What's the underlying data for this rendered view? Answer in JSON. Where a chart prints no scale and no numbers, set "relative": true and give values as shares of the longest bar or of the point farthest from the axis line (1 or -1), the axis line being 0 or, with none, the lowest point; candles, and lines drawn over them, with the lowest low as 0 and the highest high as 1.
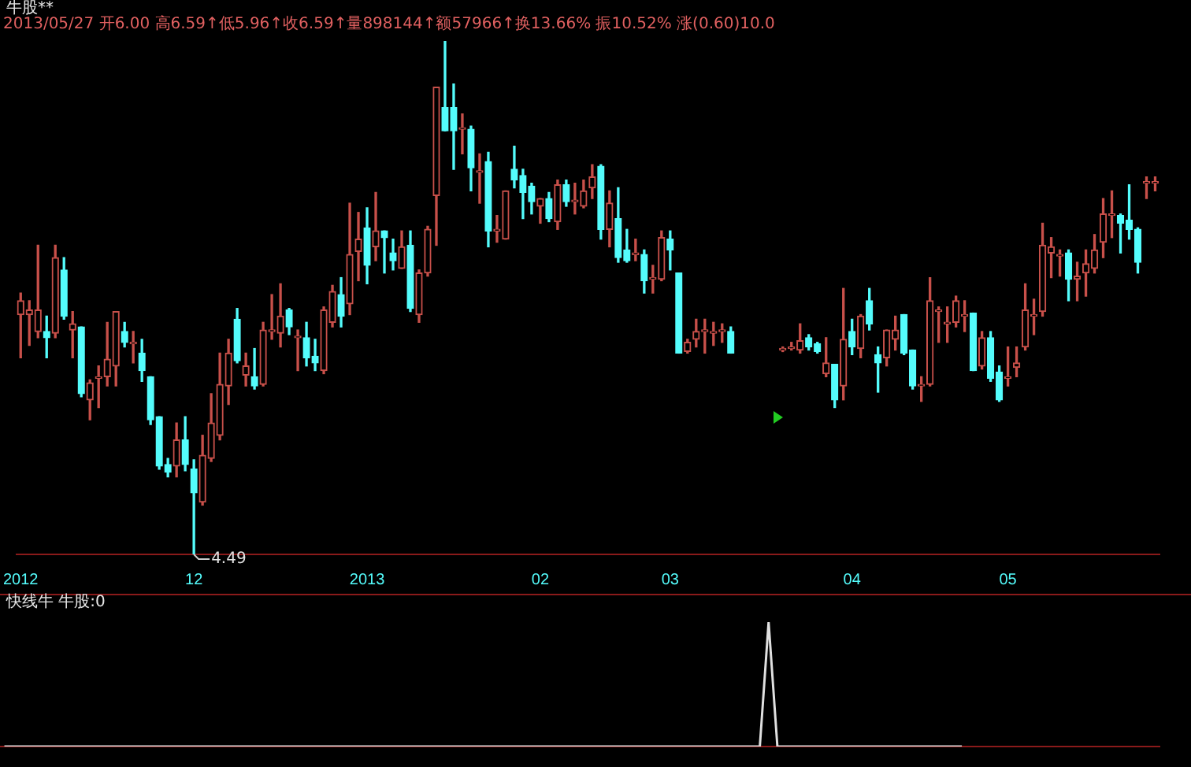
{
  "chart_data": [
    {
      "type": "candlestick",
      "title": "牛股**",
      "subtitle": "2013/05/27 开6.00 高6.59↑低5.96↑收6.59↑量898144↑额57966↑换13.66% 振10.52% 涨(0.60)10.0",
      "relative": true,
      "categories": [
        "2012",
        null,
        null,
        null,
        null,
        null,
        null,
        null,
        null,
        null,
        null,
        null,
        null,
        null,
        null,
        null,
        null,
        null,
        null,
        null,
        "12",
        null,
        null,
        null,
        null,
        null,
        null,
        null,
        null,
        null,
        null,
        null,
        null,
        null,
        null,
        null,
        null,
        null,
        null,
        null,
        "2013",
        null,
        null,
        null,
        null,
        null,
        null,
        null,
        null,
        null,
        null,
        null,
        null,
        null,
        null,
        null,
        null,
        null,
        null,
        null,
        "02",
        null,
        null,
        null,
        null,
        null,
        null,
        null,
        null,
        null,
        null,
        null,
        null,
        null,
        null,
        "03",
        null,
        null,
        null,
        null,
        null,
        null,
        null,
        null,
        null,
        null,
        null,
        null,
        null,
        null,
        null,
        null,
        null,
        null,
        null,
        null,
        "04",
        null,
        null,
        null,
        null,
        null,
        null,
        null,
        null,
        null,
        null,
        null,
        null,
        null,
        null,
        null,
        null,
        null,
        "05",
        null,
        null,
        null,
        null,
        null,
        null,
        null,
        null,
        null,
        null,
        null,
        null,
        null,
        null,
        null,
        null,
        null
      ],
      "ohlc": [
        [
          0.467,
          0.509,
          0.383,
          0.494
        ],
        [
          0.467,
          0.494,
          0.407,
          0.476
        ],
        [
          0.434,
          0.602,
          0.422,
          0.476
        ],
        [
          0.434,
          0.464,
          0.383,
          0.422
        ],
        [
          0.431,
          0.602,
          0.422,
          0.578
        ],
        [
          0.554,
          0.578,
          0.458,
          0.464
        ],
        [
          0.437,
          0.473,
          0.383,
          0.449
        ],
        [
          0.443,
          0.443,
          0.307,
          0.313
        ],
        [
          0.301,
          0.34,
          0.262,
          0.334
        ],
        [
          0.343,
          0.367,
          0.286,
          0.346
        ],
        [
          0.346,
          0.452,
          0.328,
          0.38
        ],
        [
          0.367,
          0.473,
          0.328,
          0.473
        ],
        [
          0.434,
          0.452,
          0.404,
          0.413
        ],
        [
          0.41,
          0.434,
          0.373,
          0.41
        ],
        [
          0.392,
          0.419,
          0.337,
          0.358
        ],
        [
          0.346,
          0.346,
          0.253,
          0.262
        ],
        [
          0.268,
          0.268,
          0.166,
          0.172
        ],
        [
          0.175,
          0.187,
          0.151,
          0.16
        ],
        [
          0.172,
          0.256,
          0.151,
          0.223
        ],
        [
          0.223,
          0.268,
          0.163,
          0.175
        ],
        [
          0.166,
          0.184,
          0,
          0.12
        ],
        [
          0.102,
          0.232,
          0.096,
          0.193
        ],
        [
          0.187,
          0.313,
          0.181,
          0.256
        ],
        [
          0.232,
          0.392,
          0.223,
          0.331
        ],
        [
          0.328,
          0.419,
          0.292,
          0.392
        ],
        [
          0.458,
          0.479,
          0.373,
          0.377
        ],
        [
          0.349,
          0.392,
          0.328,
          0.367
        ],
        [
          0.346,
          0.401,
          0.322,
          0.328
        ],
        [
          0.331,
          0.452,
          0.328,
          0.437
        ],
        [
          0.434,
          0.506,
          0.419,
          0.437
        ],
        [
          0.431,
          0.527,
          0.404,
          0.464
        ],
        [
          0.476,
          0.479,
          0.428,
          0.443
        ],
        [
          0.422,
          0.437,
          0.358,
          0.422
        ],
        [
          0.422,
          0.452,
          0.367,
          0.383
        ],
        [
          0.386,
          0.419,
          0.358,
          0.373
        ],
        [
          0.358,
          0.482,
          0.352,
          0.476
        ],
        [
          0.452,
          0.524,
          0.443,
          0.512
        ],
        [
          0.506,
          0.539,
          0.443,
          0.464
        ],
        [
          0.488,
          0.684,
          0.467,
          0.584
        ],
        [
          0.59,
          0.666,
          0.533,
          0.614
        ],
        [
          0.636,
          0.675,
          0.527,
          0.563
        ],
        [
          0.599,
          0.705,
          0.572,
          0.63
        ],
        [
          0.63,
          0.63,
          0.548,
          0.617
        ],
        [
          0.587,
          0.614,
          0.554,
          0.572
        ],
        [
          0.557,
          0.63,
          0.557,
          0.599
        ],
        [
          0.602,
          0.63,
          0.473,
          0.479
        ],
        [
          0.467,
          0.554,
          0.452,
          0.548
        ],
        [
          0.548,
          0.639,
          0.542,
          0.633
        ],
        [
          0.699,
          0.91,
          0.602,
          0.91
        ],
        [
          0.87,
          1,
          0.825,
          0.825
        ],
        [
          0.87,
          0.916,
          0.75,
          0.825
        ],
        [
          0.828,
          0.858,
          0.78,
          0.828
        ],
        [
          0.828,
          0.834,
          0.708,
          0.753
        ],
        [
          0.744,
          0.78,
          0.684,
          0.744
        ],
        [
          0.765,
          0.783,
          0.599,
          0.63
        ],
        [
          0.63,
          0.66,
          0.608,
          0.63
        ],
        [
          0.614,
          0.708,
          0.614,
          0.708
        ],
        [
          0.75,
          0.795,
          0.714,
          0.729
        ],
        [
          0.738,
          0.75,
          0.654,
          0.705
        ],
        [
          0.717,
          0.723,
          0.663,
          0.687
        ],
        [
          0.678,
          0.693,
          0.645,
          0.693
        ],
        [
          0.693,
          0.705,
          0.648,
          0.654
        ],
        [
          0.648,
          0.729,
          0.633,
          0.72
        ],
        [
          0.72,
          0.729,
          0.678,
          0.687
        ],
        [
          0.687,
          0.723,
          0.663,
          0.687
        ],
        [
          0.678,
          0.729,
          0.675,
          0.708
        ],
        [
          0.714,
          0.759,
          0.693,
          0.735
        ],
        [
          0.756,
          0.759,
          0.614,
          0.633
        ],
        [
          0.633,
          0.708,
          0.599,
          0.684
        ],
        [
          0.654,
          0.714,
          0.569,
          0.578
        ],
        [
          0.593,
          0.633,
          0.569,
          0.572
        ],
        [
          0.584,
          0.614,
          0.572,
          0.584
        ],
        [
          0.584,
          0.593,
          0.509,
          0.533
        ],
        [
          0.536,
          0.563,
          0.509,
          0.539
        ],
        [
          0.536,
          0.63,
          0.533,
          0.617
        ],
        [
          0.614,
          0.63,
          0.554,
          0.593
        ],
        [
          0.548,
          0.548,
          0.392,
          0.392
        ],
        [
          0.395,
          0.419,
          0.392,
          0.413
        ],
        [
          0.419,
          0.458,
          0.404,
          0.434
        ],
        [
          0.434,
          0.458,
          0.392,
          0.434
        ],
        [
          0.431,
          0.452,
          0.407,
          0.431
        ],
        [
          0.434,
          0.449,
          0.413,
          0.434
        ],
        [
          0.434,
          0.443,
          0.392,
          0.392
        ],
        null,
        null,
        null,
        null,
        null,
        [
          0.398,
          0.404,
          0.395,
          0.401
        ],
        [
          0.401,
          0.413,
          0.398,
          0.404
        ],
        [
          0.398,
          0.449,
          0.392,
          0.416
        ],
        [
          0.422,
          0.428,
          0.398,
          0.404
        ],
        [
          0.41,
          0.413,
          0.392,
          0.395
        ],
        [
          0.352,
          0.422,
          0.346,
          0.373
        ],
        [
          0.37,
          0.37,
          0.286,
          0.301
        ],
        [
          0.328,
          0.518,
          0.301,
          0.419
        ],
        [
          0.434,
          0.458,
          0.389,
          0.404
        ],
        [
          0.401,
          0.467,
          0.383,
          0.464
        ],
        [
          0.494,
          0.518,
          0.437,
          0.449
        ],
        [
          0.389,
          0.404,
          0.316,
          0.373
        ],
        [
          0.383,
          0.437,
          0.367,
          0.437
        ],
        [
          0.419,
          0.464,
          0.398,
          0.437
        ],
        [
          0.467,
          0.467,
          0.389,
          0.392
        ],
        [
          0.398,
          0.398,
          0.322,
          0.328
        ],
        [
          0.328,
          0.346,
          0.298,
          0.328
        ],
        [
          0.331,
          0.539,
          0.328,
          0.494
        ],
        [
          0.473,
          0.482,
          0.413,
          0.473
        ],
        [
          0.449,
          0.482,
          0.413,
          0.452
        ],
        [
          0.452,
          0.503,
          0.443,
          0.494
        ],
        [
          0.464,
          0.494,
          0.434,
          0.464
        ],
        [
          0.47,
          0.47,
          0.358,
          0.358
        ],
        [
          0.367,
          0.434,
          0.361,
          0.422
        ],
        [
          0.422,
          0.434,
          0.337,
          0.343
        ],
        [
          0.355,
          0.367,
          0.298,
          0.301
        ],
        [
          0.343,
          0.404,
          0.328,
          0.346
        ],
        [
          0.364,
          0.404,
          0.346,
          0.373
        ],
        [
          0.404,
          0.527,
          0.398,
          0.476
        ],
        [
          0.464,
          0.497,
          0.428,
          0.464
        ],
        [
          0.473,
          0.645,
          0.464,
          0.602
        ],
        [
          0.587,
          0.617,
          0.539,
          0.599
        ],
        [
          0.581,
          0.593,
          0.542,
          0.581
        ],
        [
          0.587,
          0.593,
          0.494,
          0.536
        ],
        [
          0.536,
          0.569,
          0.494,
          0.542
        ],
        [
          0.548,
          0.593,
          0.503,
          0.566
        ],
        [
          0.557,
          0.623,
          0.548,
          0.593
        ],
        [
          0.608,
          0.693,
          0.578,
          0.663
        ],
        [
          0.66,
          0.708,
          0.617,
          0.66
        ],
        [
          0.66,
          0.663,
          0.587,
          0.645
        ],
        [
          0.651,
          0.72,
          0.614,
          0.633
        ],
        [
          0.633,
          0.636,
          0.548,
          0.569
        ],
        [
          0.723,
          0.735,
          0.693,
          0.723
        ],
        [
          0.723,
          0.735,
          0.708,
          0.726
        ]
      ],
      "annotations": [
        "4.49"
      ]
    },
    {
      "type": "line",
      "title": "快线牛 牛股:0",
      "relative": true,
      "tick_labels": false,
      "color": "#e0e0e0",
      "categories": [
        null,
        null,
        null,
        null,
        null,
        null,
        null,
        null,
        null,
        null,
        null,
        null,
        null,
        null,
        null,
        null,
        null,
        null,
        null,
        null,
        null,
        null,
        null,
        null,
        null,
        null,
        null,
        null,
        null,
        null,
        null,
        null,
        null,
        null,
        null,
        null,
        null,
        null,
        null,
        null,
        null,
        null,
        null,
        null,
        null,
        null,
        null,
        null,
        null,
        null,
        null,
        null,
        null,
        null,
        null,
        null,
        null,
        null,
        null,
        null,
        null,
        null,
        null,
        null,
        null,
        null,
        null,
        null,
        null,
        null,
        null,
        null,
        null,
        null,
        null,
        null,
        null,
        null,
        null,
        null,
        null,
        null,
        null,
        null,
        null,
        null,
        null,
        null,
        null,
        null,
        null,
        null,
        null,
        null,
        null,
        null,
        null,
        null,
        null,
        null,
        null,
        null,
        null,
        null,
        null,
        null,
        null,
        null,
        null,
        null,
        null,
        null,
        null,
        null,
        null,
        null,
        null,
        null,
        null,
        null,
        null,
        null,
        null,
        null,
        null,
        null,
        null,
        null,
        null,
        null,
        null,
        null
      ],
      "values": [
        0,
        0,
        0,
        0,
        0,
        0,
        0,
        0,
        0,
        0,
        0,
        0,
        0,
        0,
        0,
        0,
        0,
        0,
        0,
        0,
        0,
        0,
        0,
        0,
        0,
        0,
        0,
        0,
        0,
        0,
        0,
        0,
        0,
        0,
        0,
        0,
        0,
        0,
        0,
        0,
        0,
        0,
        0,
        0,
        0,
        0,
        0,
        0,
        0,
        0,
        0,
        0,
        0,
        0,
        0,
        0,
        0,
        0,
        0,
        0,
        0,
        0,
        0,
        0,
        0,
        0,
        0,
        0,
        0,
        0,
        0,
        0,
        0,
        0,
        0,
        0,
        0,
        0,
        0,
        0,
        0,
        0,
        0,
        0,
        0,
        0,
        0,
        1,
        0,
        0,
        0,
        0,
        0,
        0,
        0,
        0,
        0,
        0,
        0,
        0,
        0,
        0,
        0,
        0,
        0,
        0,
        0,
        0,
        0,
        0,
        null,
        null,
        null,
        null,
        null,
        null,
        null,
        null,
        null,
        null,
        null,
        null,
        null,
        null,
        null,
        null,
        null,
        null,
        null,
        null,
        null,
        null
      ]
    }
  ]
}
